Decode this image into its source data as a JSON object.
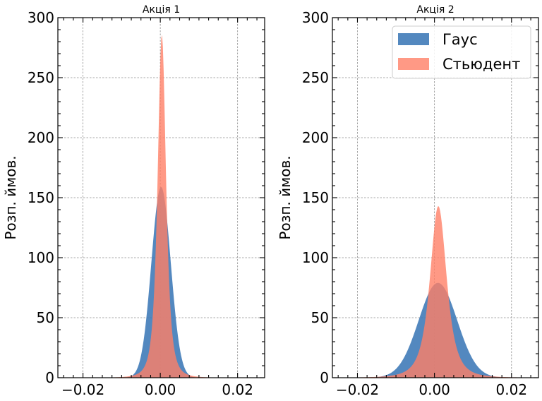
{
  "chart_data": [
    {
      "type": "area",
      "title": "Акція 1",
      "xlabel": "",
      "ylabel": "Розп. ймов.",
      "xlim": [
        -0.0265,
        0.027
      ],
      "ylim": [
        0,
        300
      ],
      "xticks": [
        -0.02,
        0.0,
        0.02
      ],
      "xtick_labels": [
        "−0.02",
        "0.00",
        "0.02"
      ],
      "yticks": [
        0,
        50,
        100,
        150,
        200,
        250,
        300
      ],
      "ytick_labels": [
        "0",
        "50",
        "100",
        "150",
        "200",
        "250",
        "300"
      ],
      "grid": true,
      "legend": null,
      "series": [
        {
          "name": "Гаус",
          "distribution": "normal",
          "mean": 0.0002,
          "std": 0.0025,
          "peak": 159,
          "color": "#3b78b6",
          "opacity": 0.88
        },
        {
          "name": "Стьюдент",
          "distribution": "student-t",
          "mean": 0.0004,
          "scale": 0.00115,
          "df": 2.5,
          "peak": 286,
          "color": "#ff7f66",
          "opacity": 0.8
        }
      ]
    },
    {
      "type": "area",
      "title": "Акція 2",
      "xlabel": "",
      "ylabel": "Розп. ймов.",
      "xlim": [
        -0.0265,
        0.027
      ],
      "ylim": [
        0,
        300
      ],
      "xticks": [
        -0.02,
        0.0,
        0.02
      ],
      "xtick_labels": [
        "−0.02",
        "0.00",
        "0.02"
      ],
      "yticks": [
        0,
        50,
        100,
        150,
        200,
        250,
        300
      ],
      "ytick_labels": [
        "0",
        "50",
        "100",
        "150",
        "200",
        "250",
        "300"
      ],
      "grid": true,
      "legend": "top-right",
      "series": [
        {
          "name": "Гаус",
          "distribution": "normal",
          "mean": 0.0009,
          "std": 0.005,
          "peak": 79,
          "color": "#3b78b6",
          "opacity": 0.88
        },
        {
          "name": "Стьюдент",
          "distribution": "student-t",
          "mean": 0.001,
          "scale": 0.0023,
          "df": 2.5,
          "peak": 143,
          "color": "#ff7f66",
          "opacity": 0.8
        }
      ]
    }
  ]
}
